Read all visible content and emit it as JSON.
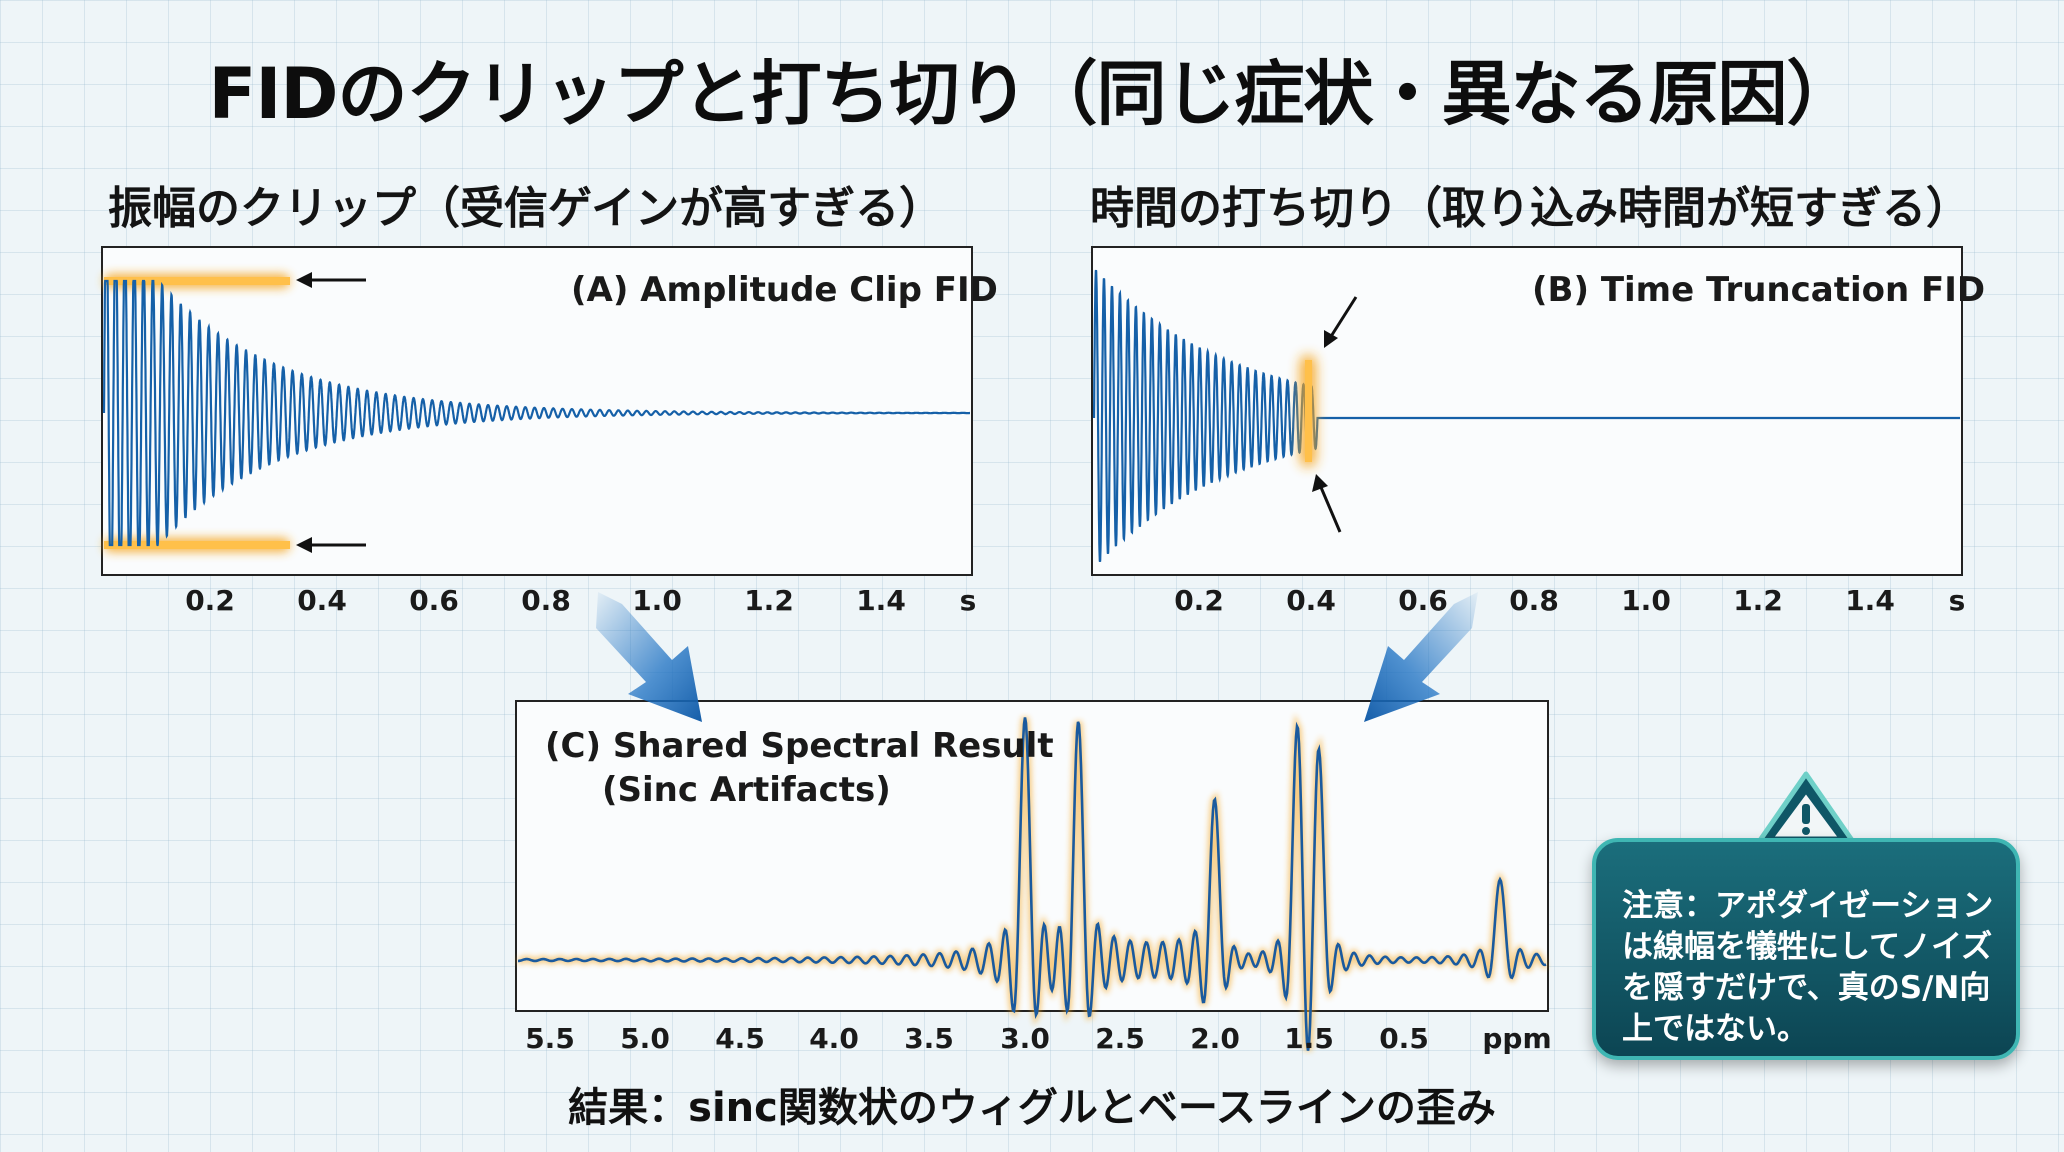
{
  "title": "FIDのクリップと打ち切り（同じ症状・異なる原因）",
  "left_subtitle": "振幅のクリップ（受信ゲインが高すぎる）",
  "right_subtitle": "時間の打ち切り（取り込み時間が短すぎる）",
  "footer": "結果：sinc関数状のウィグルとベースラインの歪み",
  "warning": {
    "icon": "warning-triangle-icon",
    "text": "注意：アポダイゼーションは線幅を犠牲にしてノイズを隠すだけで、真のS/N向上ではない。"
  },
  "colors": {
    "signal": "#1560a8",
    "highlight": "#f5a623",
    "arrow": "#1a6fc2",
    "card": "#11596a"
  },
  "chart_data": [
    {
      "type": "line",
      "label": "(A) Amplitude Clip FID",
      "x_ticks": [
        "0.2",
        "0.4",
        "0.6",
        "0.8",
        "1.0",
        "1.2",
        "1.4"
      ],
      "x_unit": "s",
      "xlim": [
        0,
        1.55
      ],
      "clip_until": 0.33,
      "notes": "amplitude clipped (flat top/bottom) until ~0.33 s, then decaying oscillation to ~1.0 s"
    },
    {
      "type": "line",
      "label": "(B) Time Truncation FID",
      "x_ticks": [
        "0.2",
        "0.4",
        "0.6",
        "0.8",
        "1.0",
        "1.2",
        "1.4"
      ],
      "x_unit": "s",
      "xlim": [
        0,
        1.55
      ],
      "truncated_at": 0.4,
      "notes": "decaying oscillation cut off abruptly at ~0.4 s, flat afterwards"
    },
    {
      "type": "line",
      "label_line1": "(C) Shared Spectral Result",
      "label_line2": "(Sinc Artifacts)",
      "x_ticks": [
        "5.5",
        "5.0",
        "4.5",
        "4.0",
        "3.5",
        "3.0",
        "2.5",
        "2.0",
        "1.5",
        "0.5"
      ],
      "x_unit": "ppm",
      "peaks_ppm": [
        {
          "ppm": 3.0,
          "height": 1.0
        },
        {
          "ppm": 2.72,
          "height": 0.96
        },
        {
          "ppm": 2.0,
          "height": 0.66
        },
        {
          "ppm": 1.57,
          "height": 0.92
        },
        {
          "ppm": 1.45,
          "height": 0.82
        },
        {
          "ppm": 0.5,
          "height": 0.34
        }
      ]
    }
  ]
}
